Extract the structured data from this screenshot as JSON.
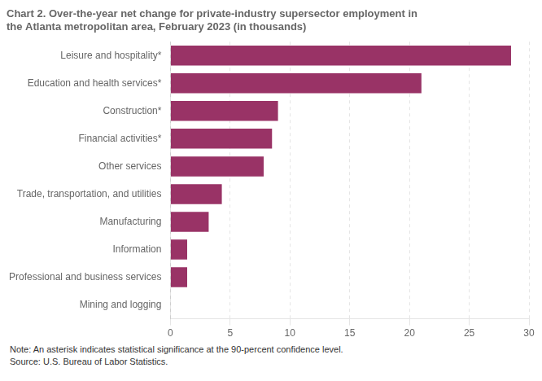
{
  "chart_data": {
    "type": "bar",
    "orientation": "horizontal",
    "title": "Chart 2. Over-the-year net change for private-industry supersector employment in\nthe Atlanta metropolitan area, February 2023 (in thousands)",
    "categories": [
      "Mining and logging",
      "Professional and business services",
      "Information",
      "Manufacturing",
      "Trade, transportation, and utilities",
      "Other services",
      "Financial activities*",
      "Construction*",
      "Education and health services*",
      "Leisure and hospitality*"
    ],
    "values": [
      0.0,
      1.4,
      1.4,
      3.2,
      4.3,
      7.8,
      8.5,
      9.0,
      21.0,
      28.5
    ],
    "color": "#993366",
    "xlim": [
      0,
      30
    ],
    "xticks": [
      0,
      5,
      10,
      15,
      20,
      25,
      30
    ],
    "grid": true,
    "annotations": [
      "Note: An asterisk indicates statistical significance at the 90-percent confidence level.",
      "Source: U.S. Bureau of Labor Statistics."
    ]
  }
}
